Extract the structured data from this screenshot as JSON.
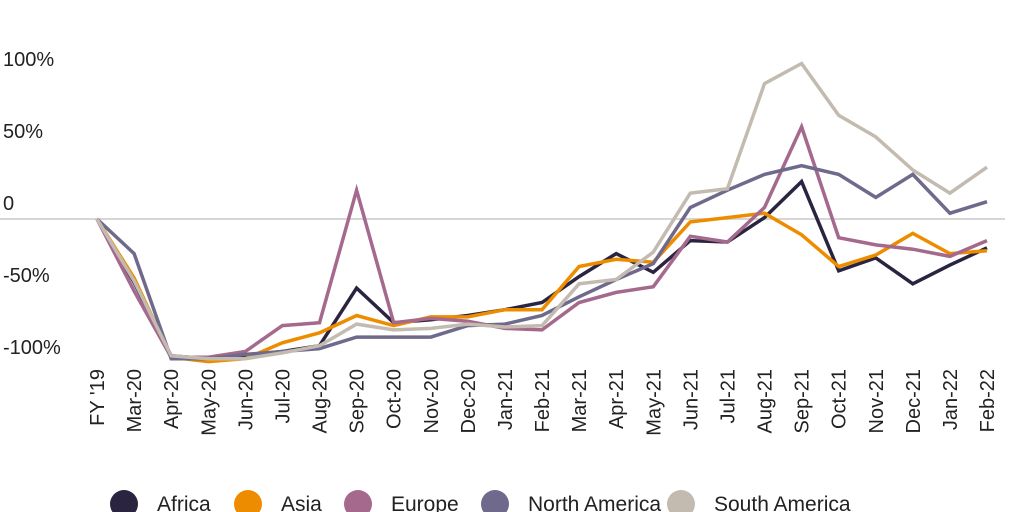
{
  "chart_data": {
    "type": "line",
    "title": "",
    "xlabel": "",
    "ylabel": "",
    "ylim": [
      -110,
      110
    ],
    "grid": false,
    "zero_line": true,
    "legend_position": "bottom",
    "yticks": [
      {
        "value": 100,
        "label": "100%"
      },
      {
        "value": 50,
        "label": "50%"
      },
      {
        "value": 0,
        "label": "0"
      },
      {
        "value": -50,
        "label": "-50%"
      },
      {
        "value": -100,
        "label": "-100%"
      }
    ],
    "categories": [
      "FY '19",
      "Mar-20",
      "Apr-20",
      "May-20",
      "Jun-20",
      "Jul-20",
      "Aug-20",
      "Sep-20",
      "Oct-20",
      "Nov-20",
      "Dec-20",
      "Jan-21",
      "Feb-21",
      "Mar-21",
      "Apr-21",
      "May-21",
      "Jun-21",
      "Jul-21",
      "Aug-21",
      "Sep-21",
      "Oct-21",
      "Nov-21",
      "Dec-21",
      "Jan-22",
      "Feb-22"
    ],
    "series": [
      {
        "name": "Africa",
        "color": "#2a2440",
        "values": [
          0,
          -44,
          -95,
          -97,
          -95,
          -92,
          -88,
          -48,
          -72,
          -70,
          -67,
          -63,
          -58,
          -40,
          -24,
          -37,
          -15,
          -16,
          1,
          26,
          -36,
          -27,
          -45,
          -32,
          -20
        ]
      },
      {
        "name": "Asia",
        "color": "#ee8c00",
        "values": [
          0,
          -41,
          -96,
          -99,
          -97,
          -86,
          -79,
          -67,
          -74,
          -68,
          -68,
          -63,
          -63,
          -33,
          -28,
          -30,
          -2,
          1,
          4,
          -11,
          -33,
          -25,
          -10,
          -24,
          -22
        ]
      },
      {
        "name": "Europe",
        "color": "#a5698d",
        "values": [
          0,
          -50,
          -96,
          -96,
          -92,
          -74,
          -72,
          20,
          -72,
          -69,
          -71,
          -76,
          -77,
          -58,
          -51,
          -47,
          -12,
          -16,
          8,
          64,
          -13,
          -18,
          -21,
          -26,
          -15
        ]
      },
      {
        "name": "North America",
        "color": "#6f6a8c",
        "values": [
          0,
          -24,
          -97,
          -97,
          -94,
          -92,
          -90,
          -82,
          -82,
          -82,
          -74,
          -73,
          -67,
          -54,
          -42,
          -31,
          8,
          20,
          31,
          37,
          31,
          15,
          31,
          4,
          12
        ]
      },
      {
        "name": "South America",
        "color": "#c3bbb0",
        "values": [
          0,
          -43,
          -95,
          -97,
          -97,
          -93,
          -88,
          -73,
          -77,
          -76,
          -73,
          -75,
          -74,
          -45,
          -42,
          -23,
          18,
          21,
          94,
          108,
          72,
          57,
          34,
          18,
          36
        ]
      }
    ]
  }
}
